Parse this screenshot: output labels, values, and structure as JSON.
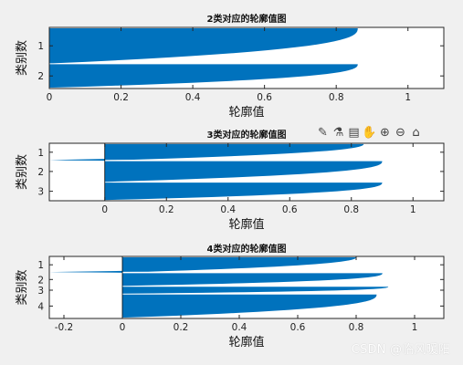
{
  "watermark": "CSDN @临风暖阳",
  "colors": {
    "fill": "#0072bd",
    "background": "#f0f0f0",
    "axes_bg": "#ffffff",
    "axis": "#262626"
  },
  "toolbar": {
    "icons": [
      "brush-icon",
      "data-tip-icon",
      "legend-icon",
      "pan-icon",
      "zoom-in-icon",
      "zoom-out-icon",
      "home-icon"
    ],
    "glyphs": [
      "✎",
      "⚗",
      "▤",
      "✋",
      "⊕",
      "⊖",
      "⌂"
    ]
  },
  "chart_data": [
    {
      "type": "bar",
      "orientation": "horizontal",
      "title": "2类对应的轮廓值图",
      "xlabel": "轮廓值",
      "ylabel": "类别数",
      "xlim": [
        0,
        1.1
      ],
      "xticks": [
        0,
        0.2,
        0.4,
        0.6,
        0.8,
        1
      ],
      "xtick_labels": [
        "0",
        "0.2",
        "0.4",
        "0.6",
        "0.8",
        "1"
      ],
      "yticks": [
        "1",
        "2"
      ],
      "clusters": [
        {
          "label": "1",
          "max": 0.86,
          "min": 0.0,
          "n": 60
        },
        {
          "label": "2",
          "max": 0.86,
          "min": 0.0,
          "n": 40
        }
      ]
    },
    {
      "type": "bar",
      "orientation": "horizontal",
      "title": "3类对应的轮廓值图",
      "xlabel": "轮廓值",
      "ylabel": "类别数",
      "xlim": [
        -0.18,
        1.1
      ],
      "xticks": [
        0,
        0.2,
        0.4,
        0.6,
        0.8,
        1
      ],
      "xtick_labels": [
        "0",
        "0.2",
        "0.4",
        "0.6",
        "0.8",
        "1"
      ],
      "yticks": [
        "1",
        "2",
        "3"
      ],
      "clusters": [
        {
          "label": "1",
          "max": 0.84,
          "min": -0.18,
          "n": 30
        },
        {
          "label": "2",
          "max": 0.9,
          "min": 0.0,
          "n": 38
        },
        {
          "label": "3",
          "max": 0.9,
          "min": 0.0,
          "n": 32
        }
      ]
    },
    {
      "type": "bar",
      "orientation": "horizontal",
      "title": "4类对应的轮廓值图",
      "xlabel": "轮廓值",
      "ylabel": "类别数",
      "xlim": [
        -0.25,
        1.1
      ],
      "xticks": [
        -0.2,
        0,
        0.2,
        0.4,
        0.6,
        0.8,
        1
      ],
      "xtick_labels": [
        "-0.2",
        "0",
        "0.2",
        "0.4",
        "0.6",
        "0.8",
        "1"
      ],
      "yticks": [
        "1",
        "2",
        "3",
        "4"
      ],
      "clusters": [
        {
          "label": "1",
          "max": 0.8,
          "min": -0.25,
          "n": 26
        },
        {
          "label": "2",
          "max": 0.89,
          "min": 0.0,
          "n": 22
        },
        {
          "label": "3",
          "max": 0.91,
          "min": 0.0,
          "n": 12
        },
        {
          "label": "4",
          "max": 0.87,
          "min": 0.0,
          "n": 40
        }
      ]
    }
  ]
}
